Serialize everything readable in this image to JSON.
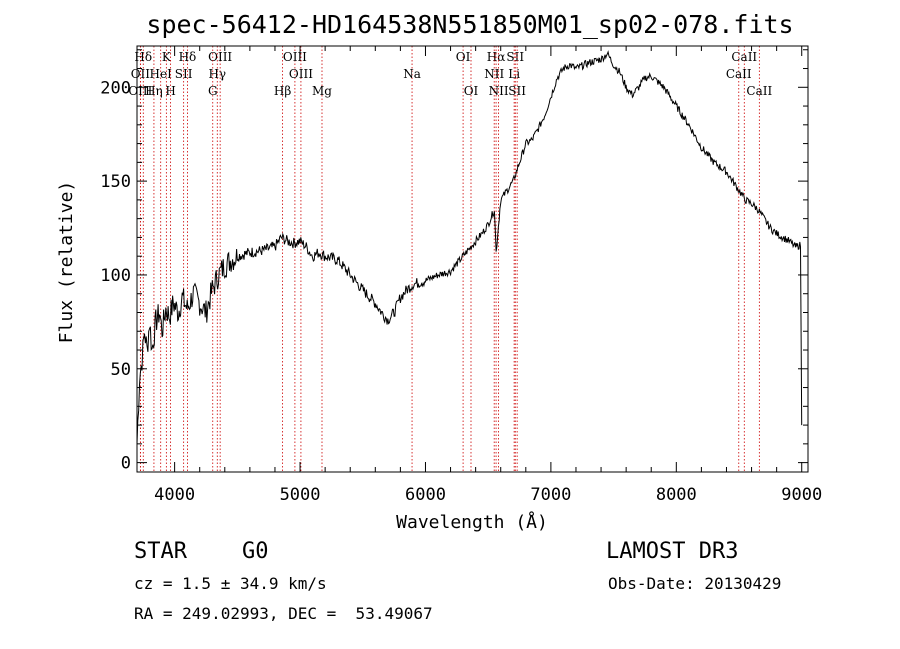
{
  "chart_data": {
    "type": "line",
    "title": "spec-56412-HD164538N551850M01_sp02-078.fits",
    "xlabel": "Wavelength (Å)",
    "ylabel": "Flux (relative)",
    "xlim": [
      3700,
      9050
    ],
    "ylim": [
      -5,
      222
    ],
    "xticks": [
      4000,
      5000,
      6000,
      7000,
      8000,
      9000
    ],
    "yticks": [
      0,
      50,
      100,
      150,
      200
    ],
    "series": [
      {
        "name": "flux",
        "x": [
          3700,
          3720,
          3740,
          3760,
          3780,
          3800,
          3820,
          3850,
          3880,
          3900,
          3930,
          3960,
          3990,
          4030,
          4060,
          4100,
          4150,
          4200,
          4250,
          4300,
          4350,
          4400,
          4450,
          4500,
          4600,
          4700,
          4800,
          4850,
          4900,
          4950,
          5000,
          5050,
          5100,
          5150,
          5200,
          5300,
          5400,
          5500,
          5600,
          5650,
          5700,
          5750,
          5800,
          5850,
          5900,
          5950,
          6000,
          6100,
          6200,
          6300,
          6400,
          6450,
          6500,
          6550,
          6563,
          6600,
          6650,
          6700,
          6750,
          6800,
          6850,
          6900,
          6950,
          7000,
          7050,
          7100,
          7150,
          7200,
          7300,
          7400,
          7450,
          7500,
          7550,
          7600,
          7650,
          7700,
          7750,
          7800,
          7900,
          8000,
          8100,
          8200,
          8300,
          8400,
          8500,
          8550,
          8600,
          8650,
          8700,
          8750,
          8800,
          8850,
          8900,
          8950,
          8990,
          9000
        ],
        "y": [
          10,
          45,
          55,
          70,
          60,
          75,
          60,
          75,
          80,
          70,
          82,
          78,
          85,
          80,
          88,
          82,
          90,
          85,
          80,
          92,
          100,
          105,
          108,
          110,
          112,
          113,
          115,
          120,
          118,
          117,
          118,
          115,
          110,
          112,
          110,
          108,
          100,
          92,
          85,
          80,
          76,
          80,
          88,
          92,
          95,
          96,
          97,
          100,
          102,
          110,
          118,
          122,
          127,
          135,
          112,
          140,
          145,
          150,
          160,
          170,
          172,
          178,
          185,
          195,
          205,
          210,
          212,
          210,
          213,
          215,
          218,
          212,
          208,
          200,
          196,
          200,
          205,
          206,
          200,
          190,
          180,
          168,
          160,
          155,
          145,
          140,
          138,
          135,
          130,
          125,
          122,
          120,
          118,
          115,
          116,
          20
        ]
      }
    ],
    "line_markers": [
      {
        "label": "Hδ",
        "x": 3750,
        "row": 1
      },
      {
        "label": "OII",
        "x": 3727,
        "row": 2
      },
      {
        "label": "OIII",
        "x": 3727,
        "row": 3
      },
      {
        "label": "K",
        "x": 3934,
        "row": 1
      },
      {
        "label": "HeI",
        "x": 3889,
        "row": 2
      },
      {
        "label": "Hη",
        "x": 3835,
        "row": 3
      },
      {
        "label": "SII",
        "x": 4072,
        "row": 2
      },
      {
        "label": "H",
        "x": 3968,
        "row": 3
      },
      {
        "label": "Hδ",
        "x": 4102,
        "row": 1
      },
      {
        "label": "OIII",
        "x": 4363,
        "row": 1
      },
      {
        "label": "Hγ",
        "x": 4340,
        "row": 2
      },
      {
        "label": "G",
        "x": 4304,
        "row": 3
      },
      {
        "label": "Hβ",
        "x": 4861,
        "row": 3
      },
      {
        "label": "OIII",
        "x": 4959,
        "row": 1
      },
      {
        "label": "OIII",
        "x": 5007,
        "row": 2
      },
      {
        "label": "Mg",
        "x": 5175,
        "row": 3
      },
      {
        "label": "Na",
        "x": 5893,
        "row": 2
      },
      {
        "label": "OI",
        "x": 6300,
        "row": 1
      },
      {
        "label": "OI",
        "x": 6363,
        "row": 3
      },
      {
        "label": "Hα",
        "x": 6563,
        "row": 1
      },
      {
        "label": "NII",
        "x": 6548,
        "row": 2
      },
      {
        "label": "NII",
        "x": 6583,
        "row": 3
      },
      {
        "label": "SII",
        "x": 6716,
        "row": 1
      },
      {
        "label": "Li",
        "x": 6707,
        "row": 2
      },
      {
        "label": "SII",
        "x": 6731,
        "row": 3
      },
      {
        "label": "CaII",
        "x": 8542,
        "row": 1
      },
      {
        "label": "CaII",
        "x": 8498,
        "row": 2
      },
      {
        "label": "CaII",
        "x": 8662,
        "row": 3
      }
    ]
  },
  "info": {
    "object_class": "STAR",
    "subclass": "G0",
    "survey": "LAMOST DR3",
    "cz": "cz = 1.5 ± 34.9 km/s",
    "obs_date": "Obs-Date: 20130429",
    "coords": "RA = 249.02993, DEC =  53.49067"
  },
  "colors": {
    "line_marker": "#cc0000",
    "spectrum": "#000000"
  }
}
